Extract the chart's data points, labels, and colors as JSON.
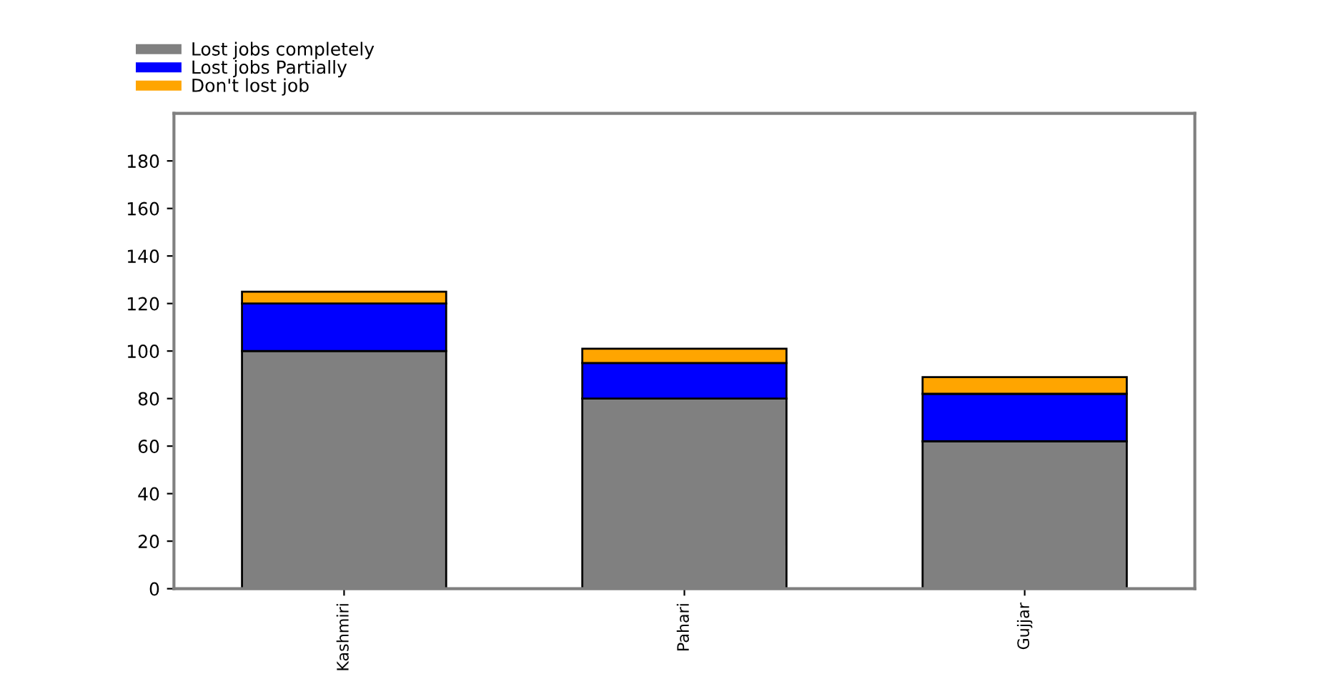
{
  "chart_data": {
    "type": "bar",
    "stacked": true,
    "categories": [
      "Kashmiri",
      "Pahari",
      "Gujjar"
    ],
    "series": [
      {
        "name": "Lost jobs completely",
        "color": "#808080",
        "values": [
          100,
          80,
          62
        ]
      },
      {
        "name": "Lost jobs Partially",
        "color": "#0000ff",
        "values": [
          20,
          15,
          20
        ]
      },
      {
        "name": "Don't lost job",
        "color": "#ffa500",
        "values": [
          5,
          6,
          7
        ]
      }
    ],
    "ylim": [
      0,
      200
    ],
    "yticks": [
      0,
      20,
      40,
      60,
      80,
      100,
      120,
      140,
      160,
      180
    ],
    "grid": false,
    "legend": "top left"
  }
}
